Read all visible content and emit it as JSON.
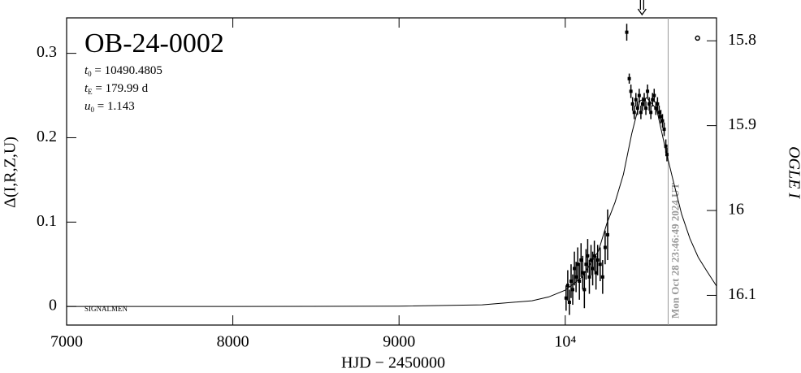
{
  "chart_data": {
    "type": "scatter",
    "title": "OB-24-0002",
    "params": [
      {
        "symbol": "t",
        "sub": "0",
        "text": " = 10490.4805"
      },
      {
        "symbol": "t",
        "sub": "E",
        "text": " = 179.99 d"
      },
      {
        "symbol": "u",
        "sub": "0",
        "text": " = 1.143"
      }
    ],
    "corner_label": "SIGNALMEN",
    "x_label": "HJD − 2450000",
    "y_label": "Δ(I,R,Z,U)",
    "y2_label": "OGLE I",
    "xlim": [
      7000,
      10910
    ],
    "xticks": [
      7000,
      8000,
      9000,
      {
        "value": 10000,
        "label": "10⁴"
      }
    ],
    "ylim": [
      -0.022,
      0.342
    ],
    "yticks": [
      0,
      0.1,
      0.2,
      0.3
    ],
    "y2lim": [
      16.135,
      15.773
    ],
    "y2ticks": [
      15.8,
      15.9,
      16,
      16.1
    ],
    "color": "#000000",
    "model": {
      "x": [
        7000,
        8000,
        9000,
        9500,
        9800,
        9900,
        10000,
        10100,
        10200,
        10250,
        10300,
        10350,
        10400,
        10450,
        10490,
        10550,
        10600,
        10650,
        10700,
        10750,
        10800,
        10850,
        10910
      ],
      "values": [
        0.0,
        0.0,
        0.0004,
        0.002,
        0.0068,
        0.0113,
        0.0193,
        0.0346,
        0.0658,
        0.0982,
        0.1237,
        0.1566,
        0.2048,
        0.2437,
        0.2473,
        0.2337,
        0.1892,
        0.1486,
        0.1095,
        0.0805,
        0.0583,
        0.0425,
        0.0242
      ]
    },
    "observations": {
      "x": [
        10005,
        10015,
        10025,
        10035,
        10045,
        10055,
        10065,
        10075,
        10085,
        10095,
        10105,
        10115,
        10125,
        10135,
        10145,
        10155,
        10165,
        10175,
        10185,
        10195,
        10210,
        10225,
        10240,
        10255,
        10370,
        10385,
        10395,
        10405,
        10415,
        10425,
        10435,
        10445,
        10455,
        10465,
        10475,
        10485,
        10495,
        10505,
        10515,
        10525,
        10535,
        10545,
        10555,
        10565,
        10575,
        10585,
        10595,
        10605,
        10612
      ],
      "values": [
        0.01,
        0.025,
        0.005,
        0.03,
        0.02,
        0.045,
        0.035,
        0.05,
        0.03,
        0.055,
        0.04,
        0.02,
        0.05,
        0.06,
        0.035,
        0.055,
        0.045,
        0.06,
        0.04,
        0.055,
        0.05,
        0.035,
        0.07,
        0.085,
        0.325,
        0.27,
        0.255,
        0.24,
        0.23,
        0.245,
        0.235,
        0.25,
        0.23,
        0.24,
        0.245,
        0.235,
        0.255,
        0.24,
        0.23,
        0.245,
        0.25,
        0.235,
        0.24,
        0.23,
        0.225,
        0.22,
        0.21,
        0.19,
        0.18
      ],
      "errors": [
        0.015,
        0.018,
        0.015,
        0.02,
        0.018,
        0.02,
        0.018,
        0.02,
        0.022,
        0.02,
        0.02,
        0.022,
        0.018,
        0.02,
        0.02,
        0.018,
        0.02,
        0.018,
        0.02,
        0.018,
        0.02,
        0.02,
        0.02,
        0.03,
        0.01,
        0.006,
        0.008,
        0.008,
        0.008,
        0.008,
        0.008,
        0.008,
        0.008,
        0.008,
        0.008,
        0.008,
        0.008,
        0.008,
        0.008,
        0.008,
        0.008,
        0.008,
        0.008,
        0.008,
        0.008,
        0.008,
        0.008,
        0.008,
        0.008
      ]
    },
    "marker": {
      "x": 10796,
      "y": 0.318
    },
    "now_line": {
      "x": 10619,
      "label": "Mon Oct 28 23:46:49 2024 UT",
      "color": "#999999"
    },
    "arrow_x": 10462
  }
}
